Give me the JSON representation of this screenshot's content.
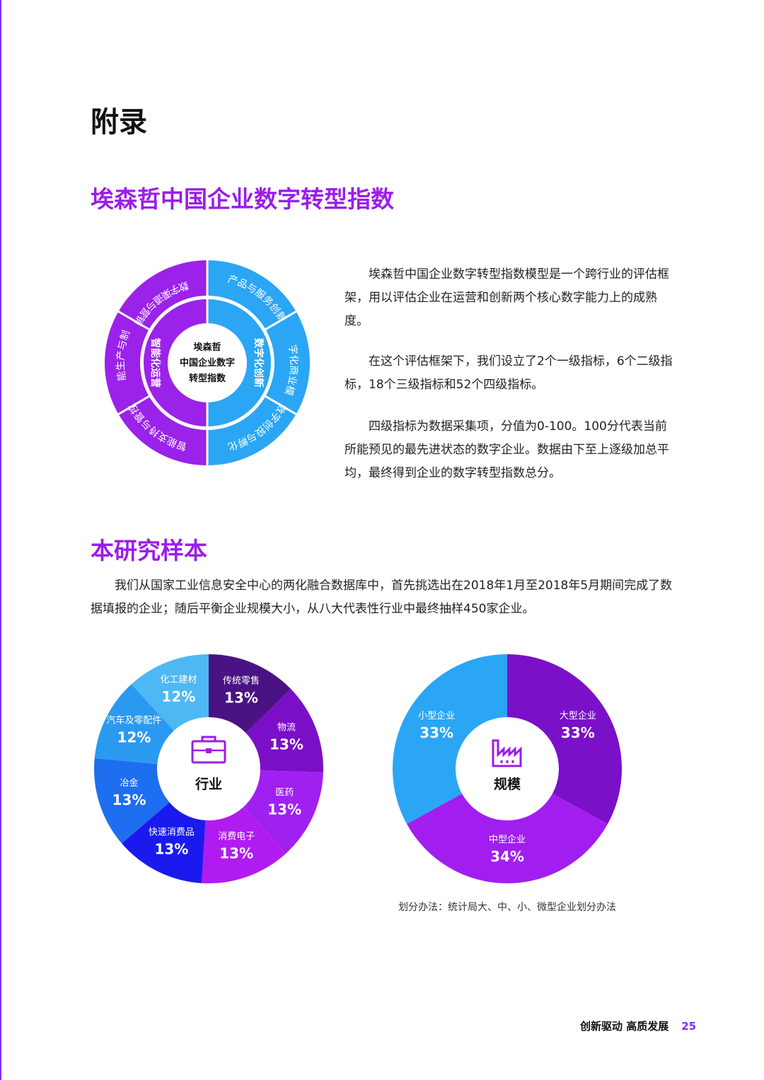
{
  "page_title": "附录",
  "section1": {
    "title": "埃森哲中国企业数字转型指数",
    "paragraphs": [
      "埃森哲中国企业数字转型指数模型是一个跨行业的评估框架，用以评估企业在运营和创新两个核心数字能力上的成熟度。",
      "在这个评估框架下，我们设立了2个一级指标，6个二级指标，18个三级指标和52个四级指标。",
      "四级指标为数据采集项，分值为0-100。100分代表当前所能预见的最先进状态的数字企业。数据由下至上逐级加总平均，最终得到企业的数字转型指数总分。"
    ]
  },
  "framework": {
    "center": [
      "埃森哲",
      "中国企业数字",
      "转型指数"
    ],
    "inner": [
      "智能化运营",
      "数字化创新"
    ],
    "outer": [
      "数字渠道与营销",
      "产品与服务创新",
      "数字化商业模式",
      "数字创投与孵化",
      "智能支持与管控",
      "智能生产与制造"
    ]
  },
  "section2": {
    "title": "本研究样本",
    "paragraph": "我们从国家工业信息安全中心的两化融合数据库中，首先挑选出在2018年1月至2018年5月期间完成了数据填报的企业；随后平衡企业规模大小，从八大代表性行业中最终抽样450家企业。"
  },
  "chart_data": [
    {
      "type": "pie",
      "title": "行业",
      "categories": [
        "传统零售",
        "物流",
        "医药",
        "消费电子",
        "快速消费品",
        "冶金",
        "汽车及零配件",
        "化工建材"
      ],
      "values": [
        13,
        13,
        13,
        13,
        13,
        13,
        12,
        12
      ],
      "labels": [
        "13%",
        "13%",
        "13%",
        "13%",
        "13%",
        "13%",
        "12%",
        "12%"
      ],
      "colors": [
        "#4a1383",
        "#7a0fc7",
        "#a020f0",
        "#b01cf0",
        "#1a1aee",
        "#1e6ef0",
        "#2a9af0",
        "#4eb8f5"
      ]
    },
    {
      "type": "pie",
      "title": "规模",
      "categories": [
        "大型企业",
        "中型企业",
        "小型企业"
      ],
      "values": [
        33,
        34,
        33
      ],
      "labels": [
        "33%",
        "34%",
        "33%"
      ],
      "colors": [
        "#7a10c8",
        "#a21ef0",
        "#2aa6f5"
      ]
    }
  ],
  "chart_note": "划分办法：统计局大、中、小、微型企业划分办法",
  "footer": {
    "text": "创新驱动 高质发展",
    "page": "25"
  }
}
